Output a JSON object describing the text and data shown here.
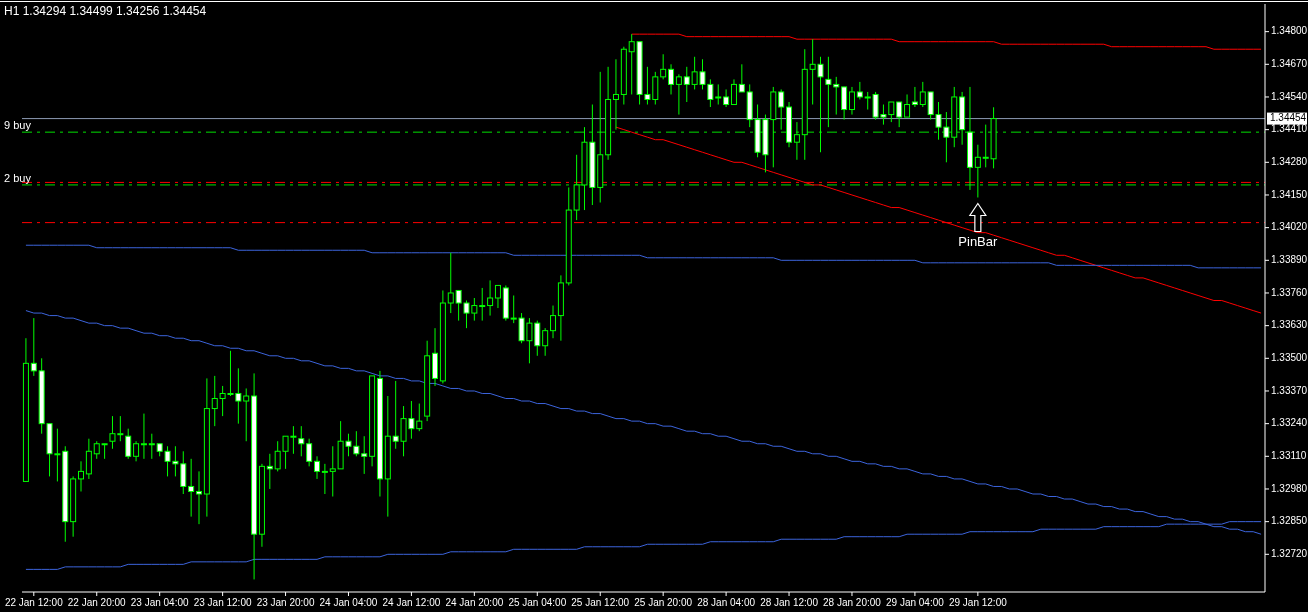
{
  "chart_data": {
    "type": "candlestick",
    "title": "H1  1.34294 1.34499 1.34256 1.34454",
    "categories": [
      null,
      "22 Jan 12:00",
      null,
      null,
      null,
      null,
      null,
      null,
      null,
      "22 Jan 20:00",
      null,
      null,
      null,
      null,
      null,
      null,
      null,
      "23 Jan 04:00",
      null,
      null,
      null,
      null,
      null,
      null,
      null,
      "23 Jan 12:00",
      null,
      null,
      null,
      null,
      null,
      null,
      null,
      "23 Jan 20:00",
      null,
      null,
      null,
      null,
      null,
      null,
      null,
      "24 Jan 04:00",
      null,
      null,
      null,
      null,
      null,
      null,
      null,
      "24 Jan 12:00",
      null,
      null,
      null,
      null,
      null,
      null,
      null,
      "24 Jan 20:00",
      null,
      null,
      null,
      null,
      null,
      null,
      null,
      "25 Jan 04:00",
      null,
      null,
      null,
      null,
      null,
      null,
      null,
      "25 Jan 12:00",
      null,
      null,
      null,
      null,
      null,
      null,
      null,
      "25 Jan 20:00",
      null,
      null,
      null,
      null,
      null,
      null,
      null,
      "28 Jan 04:00",
      null,
      null,
      null,
      null,
      null,
      null,
      null,
      "28 Jan 12:00",
      null,
      null,
      null,
      null,
      null,
      null,
      null,
      "28 Jan 20:00",
      null,
      null,
      null,
      null,
      null,
      null,
      null,
      "29 Jan 04:00",
      null,
      null,
      null,
      null,
      null,
      null,
      null,
      "29 Jan 12:00",
      null,
      null,
      null,
      null,
      null,
      null,
      null,
      null,
      null,
      null,
      null,
      null,
      null,
      null,
      null,
      null,
      null,
      null,
      null,
      null,
      null,
      null,
      null,
      null,
      null,
      null,
      null,
      null,
      null,
      null,
      null,
      null,
      null,
      null,
      null,
      null
    ],
    "ohlc": [
      [
        1.3301,
        1.3358,
        1.3301,
        1.3348
      ],
      [
        1.3348,
        1.3366,
        1.3343,
        1.3345
      ],
      [
        1.3345,
        1.335,
        1.332,
        1.3324
      ],
      [
        1.3324,
        1.3324,
        1.3303,
        1.3312
      ],
      [
        1.3312,
        1.3322,
        1.3301,
        1.3312
      ],
      [
        1.3313,
        1.3315,
        1.3277,
        1.3285
      ],
      [
        1.3285,
        1.3303,
        1.3279,
        1.3302
      ],
      [
        1.3302,
        1.3309,
        1.3297,
        1.3305
      ],
      [
        1.3304,
        1.3318,
        1.3302,
        1.3313
      ],
      [
        1.3312,
        1.3317,
        1.331,
        1.3316
      ],
      [
        1.3316,
        1.3316,
        1.331,
        1.3316
      ],
      [
        1.3317,
        1.3327,
        1.3314,
        1.332
      ],
      [
        1.332,
        1.3327,
        1.3317,
        1.332
      ],
      [
        1.3319,
        1.3322,
        1.331,
        1.3311
      ],
      [
        1.3311,
        1.3317,
        1.3309,
        1.3316
      ],
      [
        1.3316,
        1.3328,
        1.331,
        1.3316
      ],
      [
        1.3316,
        1.332,
        1.331,
        1.3316
      ],
      [
        1.3316,
        1.3316,
        1.3311,
        1.3313
      ],
      [
        1.3313,
        1.3315,
        1.3303,
        1.3309
      ],
      [
        1.3309,
        1.3315,
        1.3303,
        1.3308
      ],
      [
        1.3308,
        1.3313,
        1.3296,
        1.3299
      ],
      [
        1.3299,
        1.331,
        1.3287,
        1.3297
      ],
      [
        1.3297,
        1.3305,
        1.3284,
        1.3296
      ],
      [
        1.3296,
        1.3342,
        1.3287,
        1.333
      ],
      [
        1.333,
        1.3343,
        1.3323,
        1.3334
      ],
      [
        1.3334,
        1.3339,
        1.3327,
        1.3336
      ],
      [
        1.3336,
        1.3353,
        1.3335,
        1.3336
      ],
      [
        1.3336,
        1.3346,
        1.3324,
        1.3333
      ],
      [
        1.3333,
        1.3338,
        1.3317,
        1.3335
      ],
      [
        1.3335,
        1.3344,
        1.3262,
        1.328
      ],
      [
        1.328,
        1.3308,
        1.3275,
        1.3307
      ],
      [
        1.3307,
        1.3312,
        1.3298,
        1.3306
      ],
      [
        1.3306,
        1.3317,
        1.3305,
        1.3313
      ],
      [
        1.3313,
        1.3319,
        1.3306,
        1.3319
      ],
      [
        1.3319,
        1.3323,
        1.3312,
        1.3319
      ],
      [
        1.3318,
        1.3323,
        1.3311,
        1.3316
      ],
      [
        1.3316,
        1.3318,
        1.3307,
        1.3309
      ],
      [
        1.3309,
        1.3311,
        1.3302,
        1.3305
      ],
      [
        1.3305,
        1.3308,
        1.3296,
        1.3305
      ],
      [
        1.3305,
        1.3315,
        1.3295,
        1.3306
      ],
      [
        1.3306,
        1.3325,
        1.3306,
        1.3317
      ],
      [
        1.3317,
        1.332,
        1.3311,
        1.3315
      ],
      [
        1.3315,
        1.3321,
        1.3311,
        1.3312
      ],
      [
        1.3312,
        1.3319,
        1.3304,
        1.3311
      ],
      [
        1.3311,
        1.3343,
        1.3307,
        1.3343
      ],
      [
        1.3342,
        1.3345,
        1.3295,
        1.3302
      ],
      [
        1.3302,
        1.3335,
        1.3287,
        1.3319
      ],
      [
        1.3319,
        1.3341,
        1.3314,
        1.3317
      ],
      [
        1.3317,
        1.3331,
        1.3311,
        1.3326
      ],
      [
        1.3326,
        1.3333,
        1.3318,
        1.3322
      ],
      [
        1.3322,
        1.3332,
        1.3321,
        1.3325
      ],
      [
        1.3327,
        1.3357,
        1.3325,
        1.3351
      ],
      [
        1.3352,
        1.3362,
        1.3339,
        1.3342
      ],
      [
        1.3341,
        1.3377,
        1.334,
        1.3372
      ],
      [
        1.3372,
        1.3392,
        1.3368,
        1.3376
      ],
      [
        1.3377,
        1.3377,
        1.3365,
        1.3372
      ],
      [
        1.3372,
        1.3373,
        1.3362,
        1.3368
      ],
      [
        1.3368,
        1.3374,
        1.3365,
        1.3371
      ],
      [
        1.3371,
        1.3378,
        1.3365,
        1.3371
      ],
      [
        1.3371,
        1.3381,
        1.3367,
        1.3374
      ],
      [
        1.3374,
        1.3379,
        1.337,
        1.3379
      ],
      [
        1.3378,
        1.3379,
        1.3365,
        1.3366
      ],
      [
        1.3366,
        1.3375,
        1.3364,
        1.3366
      ],
      [
        1.3366,
        1.3368,
        1.3356,
        1.3357
      ],
      [
        1.3357,
        1.3366,
        1.3348,
        1.3364
      ],
      [
        1.3364,
        1.3365,
        1.3351,
        1.3355
      ],
      [
        1.3355,
        1.3362,
        1.3351,
        1.3361
      ],
      [
        1.3361,
        1.3371,
        1.3358,
        1.3367
      ],
      [
        1.3367,
        1.3383,
        1.3357,
        1.338
      ],
      [
        1.338,
        1.3418,
        1.3379,
        1.3409
      ],
      [
        1.3409,
        1.3431,
        1.3405,
        1.3419
      ],
      [
        1.3419,
        1.3442,
        1.3409,
        1.3436
      ],
      [
        1.3436,
        1.3451,
        1.3411,
        1.3418
      ],
      [
        1.3418,
        1.3464,
        1.3412,
        1.3431
      ],
      [
        1.3431,
        1.3466,
        1.3429,
        1.3453
      ],
      [
        1.3453,
        1.3469,
        1.3441,
        1.3455
      ],
      [
        1.3455,
        1.3474,
        1.3451,
        1.3473
      ],
      [
        1.3472,
        1.3479,
        1.3455,
        1.3476
      ],
      [
        1.3476,
        1.3476,
        1.3451,
        1.3455
      ],
      [
        1.3455,
        1.3466,
        1.3451,
        1.3453
      ],
      [
        1.3453,
        1.3464,
        1.3451,
        1.3462
      ],
      [
        1.3462,
        1.3471,
        1.3461,
        1.3465
      ],
      [
        1.3465,
        1.3467,
        1.3455,
        1.3459
      ],
      [
        1.3459,
        1.3463,
        1.3447,
        1.3462
      ],
      [
        1.3462,
        1.3466,
        1.3452,
        1.3459
      ],
      [
        1.3459,
        1.347,
        1.3457,
        1.3464
      ],
      [
        1.3464,
        1.3469,
        1.3457,
        1.3459
      ],
      [
        1.3459,
        1.3461,
        1.345,
        1.3453
      ],
      [
        1.3454,
        1.3459,
        1.3451,
        1.3454
      ],
      [
        1.3454,
        1.3457,
        1.345,
        1.3451
      ],
      [
        1.3451,
        1.3461,
        1.3451,
        1.3459
      ],
      [
        1.3459,
        1.3467,
        1.3456,
        1.3456
      ],
      [
        1.3456,
        1.3459,
        1.3442,
        1.3445
      ],
      [
        1.3445,
        1.3451,
        1.343,
        1.3432
      ],
      [
        1.3445,
        1.3447,
        1.3424,
        1.3431
      ],
      [
        1.3445,
        1.3458,
        1.3426,
        1.3456
      ],
      [
        1.3456,
        1.3457,
        1.3441,
        1.345
      ],
      [
        1.345,
        1.3452,
        1.3434,
        1.3436
      ],
      [
        1.3436,
        1.3444,
        1.3429,
        1.3439
      ],
      [
        1.3439,
        1.3473,
        1.3429,
        1.3465
      ],
      [
        1.3465,
        1.3477,
        1.3451,
        1.3467
      ],
      [
        1.3467,
        1.347,
        1.3432,
        1.3462
      ],
      [
        1.3461,
        1.347,
        1.3442,
        1.3459
      ],
      [
        1.3459,
        1.3462,
        1.3447,
        1.3458
      ],
      [
        1.3458,
        1.3458,
        1.3445,
        1.3449
      ],
      [
        1.3449,
        1.3458,
        1.3447,
        1.3456
      ],
      [
        1.3456,
        1.346,
        1.3453,
        1.3454
      ],
      [
        1.3454,
        1.3456,
        1.3449,
        1.3454
      ],
      [
        1.3455,
        1.3456,
        1.3445,
        1.3446
      ],
      [
        1.3447,
        1.3451,
        1.3443,
        1.3446
      ],
      [
        1.3447,
        1.3452,
        1.3444,
        1.3452
      ],
      [
        1.3452,
        1.3452,
        1.3442,
        1.3446
      ],
      [
        1.3446,
        1.3455,
        1.3446,
        1.3451
      ],
      [
        1.3452,
        1.3458,
        1.345,
        1.3451
      ],
      [
        1.3451,
        1.346,
        1.345,
        1.3456
      ],
      [
        1.3456,
        1.3456,
        1.3445,
        1.3447
      ],
      [
        1.3447,
        1.3452,
        1.3437,
        1.3442
      ],
      [
        1.3442,
        1.3448,
        1.3428,
        1.3438
      ],
      [
        1.3438,
        1.3458,
        1.3434,
        1.3454
      ],
      [
        1.3454,
        1.3456,
        1.3435,
        1.3441
      ],
      [
        1.344,
        1.3458,
        1.3417,
        1.3426
      ],
      [
        1.3426,
        1.3435,
        1.3414,
        1.343
      ],
      [
        1.343,
        1.3443,
        1.3426,
        1.343
      ],
      [
        1.34294,
        1.34499,
        1.34256,
        1.34454
      ],
      null,
      null,
      null,
      null,
      null,
      null,
      null,
      null,
      null,
      null,
      null,
      null,
      null,
      null,
      null,
      null,
      null,
      null,
      null,
      null,
      null,
      null,
      null,
      null,
      null,
      null,
      null,
      null,
      null,
      null,
      null,
      null,
      null,
      null
    ],
    "color": "#00ff00",
    "series": [
      {
        "type": "line",
        "color": "#ff0000",
        "values": [
          null,
          null,
          null,
          null,
          null,
          null,
          null,
          null,
          null,
          null,
          null,
          null,
          null,
          null,
          null,
          null,
          null,
          null,
          null,
          null,
          null,
          null,
          null,
          null,
          null,
          null,
          null,
          null,
          null,
          null,
          null,
          null,
          null,
          null,
          null,
          null,
          null,
          null,
          null,
          null,
          null,
          null,
          null,
          null,
          null,
          null,
          null,
          null,
          null,
          null,
          null,
          null,
          null,
          null,
          null,
          null,
          null,
          null,
          null,
          null,
          null,
          null,
          null,
          null,
          null,
          null,
          null,
          null,
          null,
          null,
          null,
          null,
          null,
          null,
          null,
          null,
          null,
          1.3479,
          1.3479,
          1.3479,
          1.3479,
          1.3479,
          1.3479,
          1.3479,
          1.3478,
          1.3478,
          1.3478,
          1.3478,
          1.3478,
          1.3478,
          1.3478,
          1.3478,
          1.3478,
          1.3478,
          1.3478,
          1.3478,
          1.3478,
          1.3478,
          1.3477,
          1.3477,
          1.3477,
          1.3477,
          1.3477,
          1.3477,
          1.3477,
          1.3477,
          1.3477,
          1.3477,
          1.3477,
          1.3477,
          1.3477,
          1.3476,
          1.3476,
          1.3476,
          1.3476,
          1.3476,
          1.3476,
          1.3476,
          1.3476,
          1.3476,
          1.3476,
          1.3476,
          1.3476,
          1.3476,
          1.3475,
          1.3475,
          1.3475,
          1.3475,
          1.3475,
          1.3475,
          1.3475,
          1.3475,
          1.3475,
          1.3475,
          1.3475,
          1.3475,
          1.3475,
          1.3475,
          1.3474,
          1.3474,
          1.3474,
          1.3474,
          1.3474,
          1.3474,
          1.3474,
          1.3474,
          1.3474,
          1.3474,
          1.3474,
          1.3474,
          1.3474,
          1.3473,
          1.3473,
          1.3473,
          1.3473,
          1.3473,
          1.3473,
          1.3473
        ]
      },
      {
        "type": "line",
        "color": "#ff0000",
        "values": [
          null,
          null,
          null,
          null,
          null,
          null,
          null,
          null,
          null,
          null,
          null,
          null,
          null,
          null,
          null,
          null,
          null,
          null,
          null,
          null,
          null,
          null,
          null,
          null,
          null,
          null,
          null,
          null,
          null,
          null,
          null,
          null,
          null,
          null,
          null,
          null,
          null,
          null,
          null,
          null,
          null,
          null,
          null,
          null,
          null,
          null,
          null,
          null,
          null,
          null,
          null,
          null,
          null,
          null,
          null,
          null,
          null,
          null,
          null,
          null,
          null,
          null,
          null,
          null,
          null,
          null,
          null,
          null,
          null,
          null,
          null,
          null,
          null,
          null,
          null,
          1.3442,
          1.3441,
          1.344,
          1.3439,
          1.3438,
          1.3437,
          1.3437,
          1.3436,
          1.3435,
          1.3434,
          1.3433,
          1.3432,
          1.3431,
          1.343,
          1.3429,
          1.3428,
          1.3428,
          1.3427,
          1.3426,
          1.3425,
          1.3424,
          1.3423,
          1.3422,
          1.3421,
          1.342,
          1.3419,
          1.3419,
          1.3418,
          1.3417,
          1.3416,
          1.3415,
          1.3414,
          1.3413,
          1.3412,
          1.3411,
          1.341,
          1.341,
          1.3409,
          1.3408,
          1.3407,
          1.3406,
          1.3405,
          1.3404,
          1.3403,
          1.3402,
          1.3401,
          1.34,
          1.34,
          1.3399,
          1.3398,
          1.3397,
          1.3396,
          1.3395,
          1.3394,
          1.3393,
          1.3392,
          1.3391,
          1.3391,
          1.339,
          1.3389,
          1.3388,
          1.3387,
          1.3386,
          1.3385,
          1.3384,
          1.3383,
          1.3382,
          1.3382,
          1.3381,
          1.338,
          1.3379,
          1.3378,
          1.3377,
          1.3376,
          1.3375,
          1.3374,
          1.3373,
          1.3373,
          1.3372,
          1.3371,
          1.337,
          1.3369,
          1.3368
        ]
      },
      {
        "type": "line",
        "color": "#3c64dc",
        "values": [
          1.3395,
          1.3395,
          1.3395,
          1.3395,
          1.3395,
          1.3395,
          1.3395,
          1.3395,
          1.3395,
          1.3394,
          1.3394,
          1.3394,
          1.3394,
          1.3394,
          1.3394,
          1.3394,
          1.3394,
          1.3394,
          1.3394,
          1.3394,
          1.3394,
          1.3394,
          1.3394,
          1.3394,
          1.3394,
          1.3394,
          1.3394,
          1.3393,
          1.3393,
          1.3393,
          1.3393,
          1.3393,
          1.3393,
          1.3393,
          1.3393,
          1.3393,
          1.3393,
          1.3393,
          1.3393,
          1.3393,
          1.3393,
          1.3393,
          1.3393,
          1.3393,
          1.3392,
          1.3392,
          1.3392,
          1.3392,
          1.3392,
          1.3392,
          1.3392,
          1.3392,
          1.3392,
          1.3392,
          1.3392,
          1.3392,
          1.3392,
          1.3392,
          1.3392,
          1.3392,
          1.3392,
          1.3392,
          1.3391,
          1.3391,
          1.3391,
          1.3391,
          1.3391,
          1.3391,
          1.3391,
          1.3391,
          1.3391,
          1.3391,
          1.3391,
          1.3391,
          1.3391,
          1.3391,
          1.3391,
          1.3391,
          1.3391,
          1.339,
          1.339,
          1.339,
          1.339,
          1.339,
          1.339,
          1.339,
          1.339,
          1.339,
          1.339,
          1.339,
          1.339,
          1.339,
          1.339,
          1.339,
          1.339,
          1.339,
          1.3389,
          1.3389,
          1.3389,
          1.3389,
          1.3389,
          1.3389,
          1.3389,
          1.3389,
          1.3389,
          1.3389,
          1.3389,
          1.3389,
          1.3389,
          1.3389,
          1.3389,
          1.3389,
          1.3389,
          1.3389,
          1.3388,
          1.3388,
          1.3388,
          1.3388,
          1.3388,
          1.3388,
          1.3388,
          1.3388,
          1.3388,
          1.3388,
          1.3388,
          1.3388,
          1.3388,
          1.3388,
          1.3388,
          1.3388,
          1.3388,
          1.3387,
          1.3387,
          1.3387,
          1.3387,
          1.3387,
          1.3387,
          1.3387,
          1.3387,
          1.3387,
          1.3387,
          1.3387,
          1.3387,
          1.3387,
          1.3387,
          1.3387,
          1.3387,
          1.3387,
          1.3387,
          1.3386,
          1.3386,
          1.3386,
          1.3386,
          1.3386,
          1.3386,
          1.3386,
          1.3386,
          1.3386
        ]
      },
      {
        "type": "line",
        "color": "#3c64dc",
        "values": [
          1.3369,
          1.3368,
          1.3368,
          1.3367,
          1.3367,
          1.3366,
          1.3366,
          1.3365,
          1.3364,
          1.3364,
          1.3363,
          1.3363,
          1.3362,
          1.3362,
          1.3361,
          1.336,
          1.336,
          1.3359,
          1.3359,
          1.3358,
          1.3358,
          1.3357,
          1.3357,
          1.3356,
          1.3355,
          1.3355,
          1.3354,
          1.3354,
          1.3353,
          1.3353,
          1.3352,
          1.3351,
          1.3351,
          1.335,
          1.335,
          1.3349,
          1.3349,
          1.3348,
          1.3347,
          1.3347,
          1.3346,
          1.3346,
          1.3345,
          1.3345,
          1.3344,
          1.3343,
          1.3343,
          1.3342,
          1.3342,
          1.3341,
          1.3341,
          1.334,
          1.334,
          1.3339,
          1.3338,
          1.3338,
          1.3337,
          1.3337,
          1.3336,
          1.3336,
          1.3335,
          1.3334,
          1.3334,
          1.3333,
          1.3333,
          1.3332,
          1.3332,
          1.3331,
          1.333,
          1.333,
          1.3329,
          1.3329,
          1.3328,
          1.3328,
          1.3327,
          1.3326,
          1.3326,
          1.3325,
          1.3325,
          1.3324,
          1.3324,
          1.3323,
          1.3323,
          1.3322,
          1.3321,
          1.3321,
          1.332,
          1.332,
          1.3319,
          1.3319,
          1.3318,
          1.3317,
          1.3317,
          1.3316,
          1.3316,
          1.3315,
          1.3315,
          1.3314,
          1.3313,
          1.3313,
          1.3312,
          1.3312,
          1.3311,
          1.3311,
          1.331,
          1.3309,
          1.3309,
          1.3308,
          1.3308,
          1.3307,
          1.3307,
          1.3306,
          1.3306,
          1.3305,
          1.3304,
          1.3304,
          1.3303,
          1.3303,
          1.3302,
          1.3302,
          1.3301,
          1.33,
          1.33,
          1.3299,
          1.3299,
          1.3298,
          1.3298,
          1.3297,
          1.3296,
          1.3296,
          1.3295,
          1.3295,
          1.3294,
          1.3294,
          1.3293,
          1.3292,
          1.3292,
          1.3291,
          1.3291,
          1.329,
          1.329,
          1.3289,
          1.3289,
          1.3288,
          1.3287,
          1.3287,
          1.3286,
          1.3286,
          1.3285,
          1.3285,
          1.3284,
          1.3283,
          1.3283,
          1.3282,
          1.3282,
          1.3281,
          1.3281,
          1.328
        ]
      },
      {
        "type": "line",
        "color": "#3c64dc",
        "values": [
          1.3266,
          1.3266,
          1.3266,
          1.3266,
          1.3266,
          1.3267,
          1.3267,
          1.3267,
          1.3267,
          1.3267,
          1.3267,
          1.3267,
          1.3267,
          1.3268,
          1.3268,
          1.3268,
          1.3268,
          1.3268,
          1.3268,
          1.3268,
          1.3268,
          1.3269,
          1.3269,
          1.3269,
          1.3269,
          1.3269,
          1.3269,
          1.3269,
          1.3269,
          1.327,
          1.327,
          1.327,
          1.327,
          1.327,
          1.327,
          1.327,
          1.327,
          1.327,
          1.3271,
          1.3271,
          1.3271,
          1.3271,
          1.3271,
          1.3271,
          1.3271,
          1.3271,
          1.3272,
          1.3272,
          1.3272,
          1.3272,
          1.3272,
          1.3272,
          1.3272,
          1.3272,
          1.3273,
          1.3273,
          1.3273,
          1.3273,
          1.3273,
          1.3273,
          1.3273,
          1.3273,
          1.3274,
          1.3274,
          1.3274,
          1.3274,
          1.3274,
          1.3274,
          1.3274,
          1.3274,
          1.3274,
          1.3275,
          1.3275,
          1.3275,
          1.3275,
          1.3275,
          1.3275,
          1.3275,
          1.3275,
          1.3276,
          1.3276,
          1.3276,
          1.3276,
          1.3276,
          1.3276,
          1.3276,
          1.3276,
          1.3277,
          1.3277,
          1.3277,
          1.3277,
          1.3277,
          1.3277,
          1.3277,
          1.3277,
          1.3277,
          1.3278,
          1.3278,
          1.3278,
          1.3278,
          1.3278,
          1.3278,
          1.3278,
          1.3278,
          1.3279,
          1.3279,
          1.3279,
          1.3279,
          1.3279,
          1.3279,
          1.3279,
          1.3279,
          1.328,
          1.328,
          1.328,
          1.328,
          1.328,
          1.328,
          1.328,
          1.328,
          1.3281,
          1.3281,
          1.3281,
          1.3281,
          1.3281,
          1.3281,
          1.3281,
          1.3281,
          1.3281,
          1.3282,
          1.3282,
          1.3282,
          1.3282,
          1.3282,
          1.3282,
          1.3282,
          1.3282,
          1.3283,
          1.3283,
          1.3283,
          1.3283,
          1.3283,
          1.3283,
          1.3283,
          1.3283,
          1.3284,
          1.3284,
          1.3284,
          1.3284,
          1.3284,
          1.3284,
          1.3284,
          1.3284,
          1.3285,
          1.3285,
          1.3285,
          1.3285,
          1.3285
        ]
      }
    ],
    "ref_lines": [
      {
        "axis": "y",
        "value": 1.34454,
        "label": "1.34454",
        "color": "#8c9bb4",
        "line_style": "solid"
      },
      {
        "axis": "y",
        "value": 1.344,
        "label": "9 buy",
        "color": "#00e000",
        "line_style": "dashdot"
      },
      {
        "axis": "y",
        "value": 1.342,
        "color": "#ff0000",
        "line_style": "dashdot"
      },
      {
        "axis": "y",
        "value": 1.3419,
        "label": "2 buy",
        "color": "#00e000",
        "line_style": "dashdot"
      },
      {
        "axis": "y",
        "value": 1.3404,
        "color": "#ff0000",
        "line_style": "dashdot"
      }
    ],
    "annotations": [
      {
        "text": "PinBar",
        "x": "29 Jan 12:00",
        "y": 1.3414
      }
    ],
    "ylim": [
      1.3257,
      1.3491
    ],
    "yticks": [
      {
        "value": 1.348,
        "label": "1.34800"
      },
      {
        "value": 1.3467,
        "label": "1.34670"
      },
      {
        "value": 1.3454,
        "label": "1.34540"
      },
      {
        "value": 1.3441,
        "label": "1.34410"
      },
      {
        "value": 1.3428,
        "label": "1.34280"
      },
      {
        "value": 1.3415,
        "label": "1.34150"
      },
      {
        "value": 1.3402,
        "label": "1.34020"
      },
      {
        "value": 1.3389,
        "label": "1.33890"
      },
      {
        "value": 1.3376,
        "label": "1.33760"
      },
      {
        "value": 1.3363,
        "label": "1.33630"
      },
      {
        "value": 1.335,
        "label": "1.33500"
      },
      {
        "value": 1.3337,
        "label": "1.33370"
      },
      {
        "value": 1.3324,
        "label": "1.33240"
      },
      {
        "value": 1.3311,
        "label": "1.33110"
      },
      {
        "value": 1.3298,
        "label": "1.32980"
      },
      {
        "value": 1.3285,
        "label": "1.32850"
      },
      {
        "value": 1.3272,
        "label": "1.32720"
      }
    ]
  }
}
